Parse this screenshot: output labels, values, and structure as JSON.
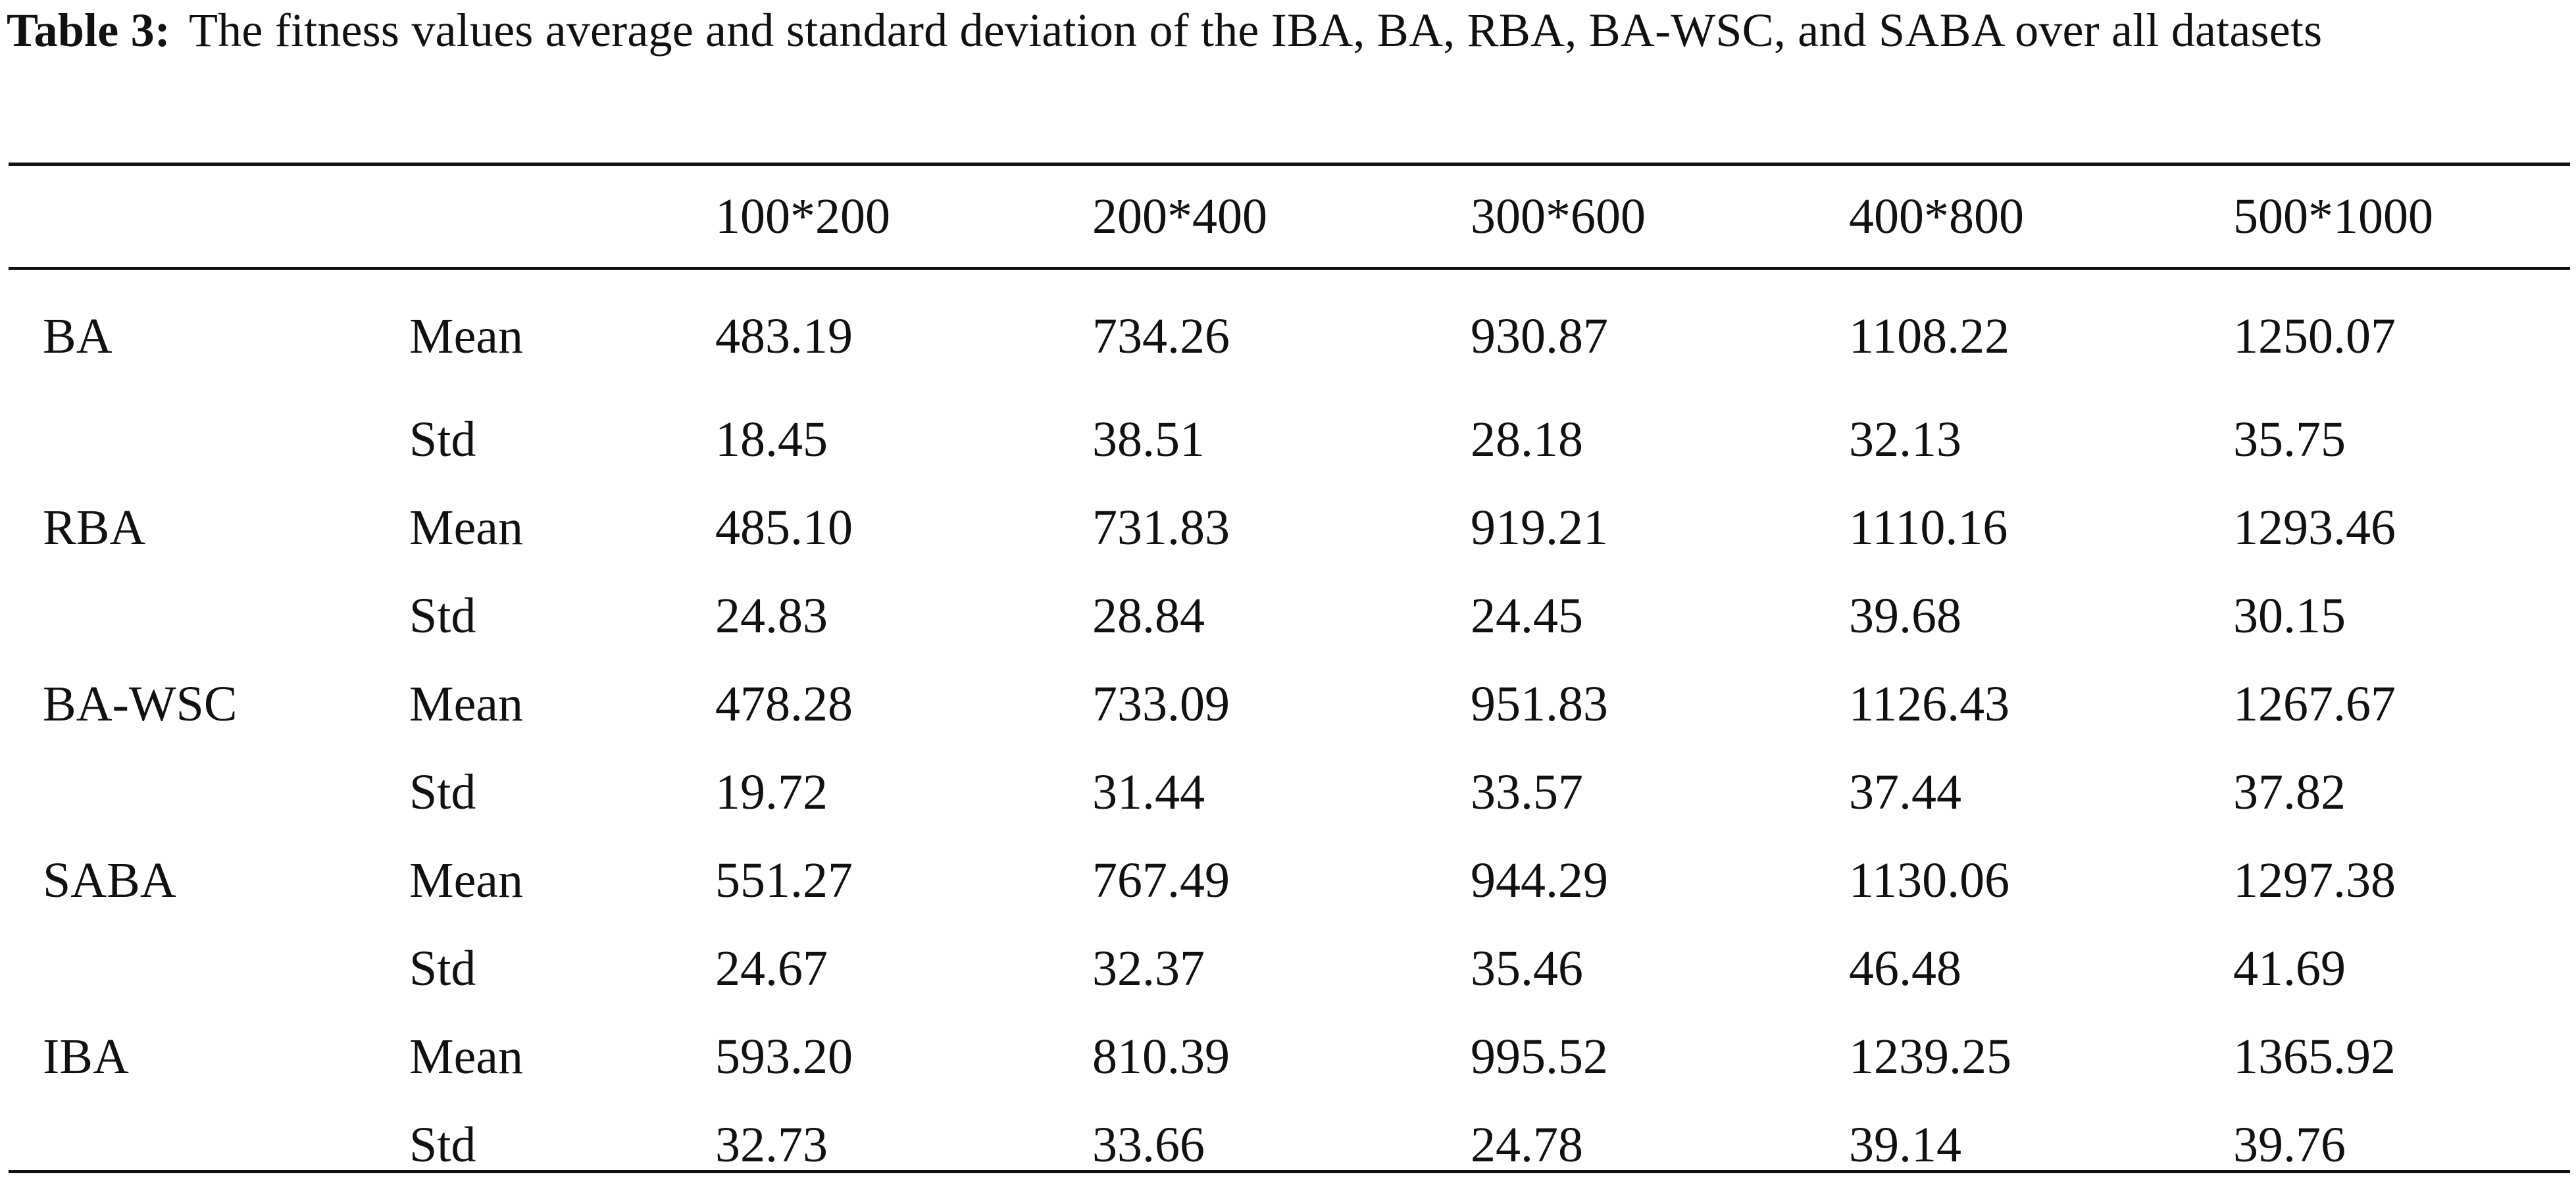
{
  "caption": {
    "label": "Table 3:",
    "text": "The fitness values average and standard deviation of the IBA, BA, RBA, BA-WSC, and SABA over all datasets"
  },
  "table": {
    "headers": [
      "",
      "",
      "100*200",
      "200*400",
      "300*600",
      "400*800",
      "500*1000"
    ],
    "rows": [
      {
        "method": "BA",
        "stat": "Mean",
        "values": [
          "483.19",
          "734.26",
          "930.87",
          "1108.22",
          "1250.07"
        ]
      },
      {
        "method": "",
        "stat": "Std",
        "values": [
          "18.45",
          "38.51",
          "28.18",
          "32.13",
          "35.75"
        ]
      },
      {
        "method": "RBA",
        "stat": "Mean",
        "values": [
          "485.10",
          "731.83",
          "919.21",
          "1110.16",
          "1293.46"
        ]
      },
      {
        "method": "",
        "stat": "Std",
        "values": [
          "24.83",
          "28.84",
          "24.45",
          "39.68",
          "30.15"
        ]
      },
      {
        "method": "BA-WSC",
        "stat": "Mean",
        "values": [
          "478.28",
          "733.09",
          "951.83",
          "1126.43",
          "1267.67"
        ]
      },
      {
        "method": "",
        "stat": "Std",
        "values": [
          "19.72",
          "31.44",
          "33.57",
          "37.44",
          "37.82"
        ]
      },
      {
        "method": "SABA",
        "stat": "Mean",
        "values": [
          "551.27",
          "767.49",
          "944.29",
          "1130.06",
          "1297.38"
        ]
      },
      {
        "method": "",
        "stat": "Std",
        "values": [
          "24.67",
          "32.37",
          "35.46",
          "46.48",
          "41.69"
        ]
      },
      {
        "method": "IBA",
        "stat": "Mean",
        "values": [
          "593.20",
          "810.39",
          "995.52",
          "1239.25",
          "1365.92"
        ]
      },
      {
        "method": "",
        "stat": "Std",
        "values": [
          "32.73",
          "33.66",
          "24.78",
          "39.14",
          "39.76"
        ]
      }
    ]
  }
}
